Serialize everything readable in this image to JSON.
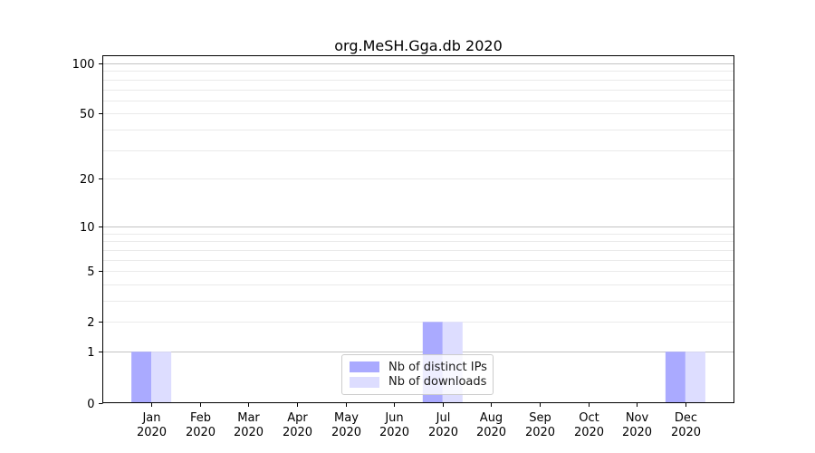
{
  "figure": {
    "title": "org.MeSH.Gga.db 2020"
  },
  "chart_data": {
    "type": "bar",
    "title": "org.MeSH.Gga.db 2020",
    "x_tick_months": [
      "Jan",
      "Feb",
      "Mar",
      "Apr",
      "May",
      "Jun",
      "Jul",
      "Aug",
      "Sep",
      "Oct",
      "Nov",
      "Dec"
    ],
    "x_tick_year": "2020",
    "series": [
      {
        "name": "Nb of distinct IPs",
        "color": "#aaaaff",
        "values": [
          1,
          0,
          0,
          0,
          0,
          0,
          2,
          0,
          0,
          0,
          0,
          1
        ]
      },
      {
        "name": "Nb of downloads",
        "color": "#ddddff",
        "values": [
          1,
          0,
          0,
          0,
          0,
          0,
          2,
          0,
          0,
          0,
          0,
          1
        ]
      }
    ],
    "yscale": "log1p",
    "ylim": [
      0,
      112
    ],
    "ytick_labels": [
      0,
      1,
      2,
      5,
      10,
      20,
      50,
      100
    ],
    "major_gridlines": [
      1,
      10,
      100
    ],
    "minor_gridlines": [
      2,
      3,
      4,
      5,
      6,
      7,
      8,
      9,
      20,
      30,
      40,
      50,
      60,
      70,
      80,
      90
    ],
    "colors": {
      "spine": "#000000",
      "grid_major": "#c3c3c3",
      "grid_minor": "#eaeaea",
      "tick_text": "#000000"
    },
    "legend": {
      "position": "lower center"
    }
  }
}
